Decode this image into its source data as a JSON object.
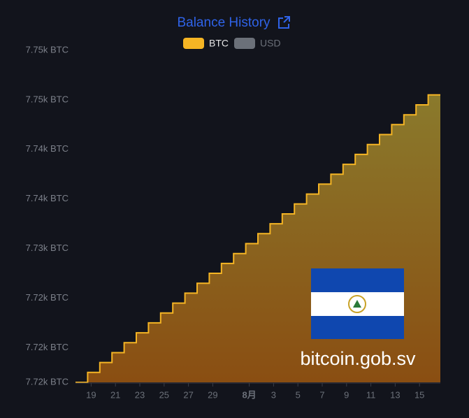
{
  "chart_data": {
    "type": "step-area",
    "title": "Balance History",
    "legend": [
      {
        "name": "BTC",
        "color": "#f5b524"
      },
      {
        "name": "USD",
        "color": "#6b7079"
      }
    ],
    "categories": [
      null,
      "19",
      null,
      "21",
      null,
      "23",
      null,
      "25",
      null,
      "27",
      null,
      "29",
      null,
      null,
      "8月",
      null,
      "3",
      null,
      "5",
      null,
      "7",
      null,
      "9",
      null,
      "11",
      null,
      "13",
      null,
      "15",
      null
    ],
    "values": [
      7716.5,
      7717.5,
      7718.5,
      7719.5,
      7720.5,
      7721.5,
      7722.5,
      7723.5,
      7724.5,
      7725.5,
      7726.5,
      7727.5,
      7728.5,
      7729.5,
      7730.5,
      7731.5,
      7732.5,
      7733.5,
      7734.5,
      7735.5,
      7736.5,
      7737.5,
      7738.5,
      7739.5,
      7740.5,
      7741.5,
      7742.5,
      7743.5,
      7744.5,
      7745.5
    ],
    "color": "#f5b524",
    "ylim": [
      7716.5,
      7750
    ],
    "yticks": [
      {
        "value": 7716.5,
        "label": "7.72k BTC"
      },
      {
        "value": 7720,
        "label": "7.72k BTC"
      },
      {
        "value": 7725,
        "label": "7.72k BTC"
      },
      {
        "value": 7730,
        "label": "7.73k BTC"
      },
      {
        "value": 7735,
        "label": "7.74k BTC"
      },
      {
        "value": 7740,
        "label": "7.74k BTC"
      },
      {
        "value": 7745,
        "label": "7.75k BTC"
      },
      {
        "value": 7750,
        "label": "7.75k BTC"
      }
    ],
    "watermark": "bitcoin.gob.sv"
  }
}
